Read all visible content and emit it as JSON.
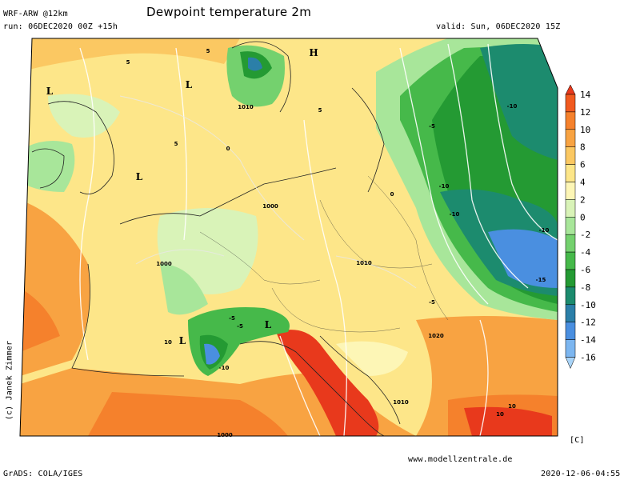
{
  "header": {
    "model": "WRF-ARW @12km",
    "title": "Dewpoint temperature 2m",
    "run": "run: 06DEC2020 00Z +15h",
    "valid": "valid: Sun, 06DEC2020 15Z"
  },
  "credit": "(c) Janek Zimmer",
  "website": "www.modellzentrale.de",
  "footer": {
    "left": "GrADS: COLA/IGES",
    "right": "2020-12-06-04:55"
  },
  "colorbar": {
    "unit": "[C]",
    "ticks": [
      "14",
      "12",
      "10",
      "8",
      "6",
      "4",
      "2",
      "0",
      "-2",
      "-4",
      "-6",
      "-8",
      "-10",
      "-12",
      "-14",
      "-16"
    ],
    "colors": [
      "#e8391c",
      "#f15a1f",
      "#f5812c",
      "#f8a342",
      "#fbc862",
      "#fde689",
      "#fdf6b6",
      "#d9f3b8",
      "#a8e69a",
      "#74d16e",
      "#46b94a",
      "#249a33",
      "#1c8b6e",
      "#2b7fa8",
      "#4a8fe0",
      "#7cb6f0",
      "#a9d4f8"
    ]
  },
  "map_labels": {
    "isobars": [
      "1010",
      "1000",
      "1000",
      "1010",
      "1020",
      "1010",
      "1000"
    ],
    "isotherms": [
      "5",
      "5",
      "5",
      "0",
      "0",
      "-5",
      "-5",
      "-10",
      "-10",
      "-10",
      "-10",
      "-15",
      "-5",
      "-10",
      "-5",
      "10",
      "10",
      "5",
      "10"
    ],
    "pressure_centers": [
      "H",
      "L",
      "L",
      "L",
      "L",
      "L"
    ]
  }
}
